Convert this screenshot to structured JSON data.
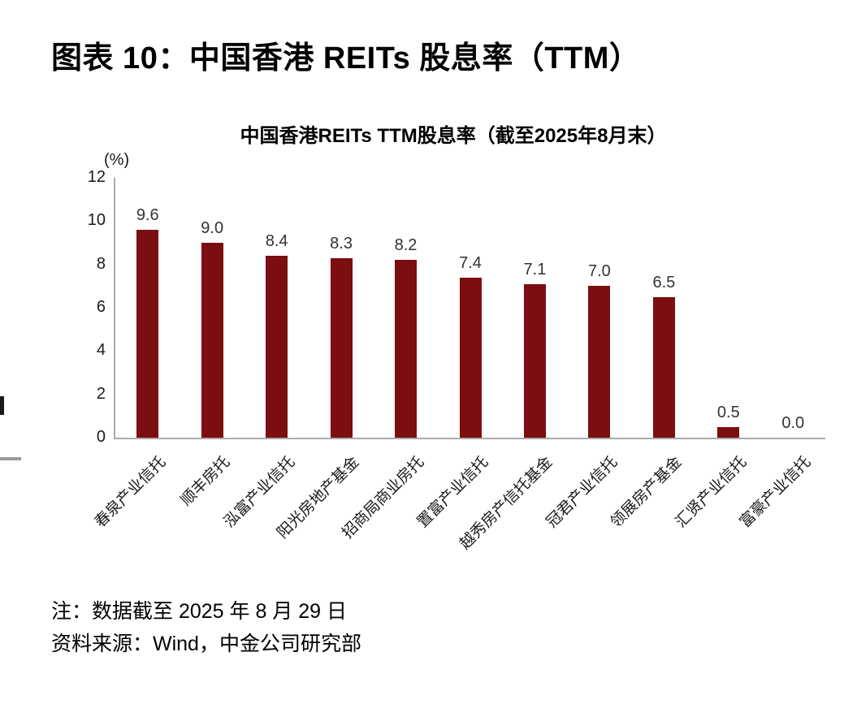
{
  "page": {
    "figure_title": "图表 10：中国香港 REITs 股息率（TTM）",
    "note_line1": "注：数据截至 2025 年 8 月 29 日",
    "note_line2": "资料来源：Wind，中金公司研究部"
  },
  "chart_data": {
    "type": "bar",
    "title": "中国香港REITs TTM股息率（截至2025年8月末）",
    "unit_label": "(%)",
    "categories": [
      "春泉产业信托",
      "顺丰房托",
      "泓富产业信托",
      "阳光房地产基金",
      "招商局商业房托",
      "置富产业信托",
      "越秀房产信托基金",
      "冠君产业信托",
      "领展房产基金",
      "汇贤产业信托",
      "富豪产业信托"
    ],
    "values": [
      9.6,
      9.0,
      8.4,
      8.3,
      8.2,
      7.4,
      7.1,
      7.0,
      6.5,
      0.5,
      0.0
    ],
    "value_labels": [
      "9.6",
      "9.0",
      "8.4",
      "8.3",
      "8.2",
      "7.4",
      "7.1",
      "7.0",
      "6.5",
      "0.5",
      "0.0"
    ],
    "xlabel": "",
    "ylabel": "(%)",
    "ylim": [
      0,
      12
    ],
    "yticks": [
      0,
      2,
      4,
      6,
      8,
      10,
      12
    ],
    "grid": false,
    "legend_position": "none",
    "bar_color": "#7c0d10",
    "axis_color": "#ababab",
    "value_label_color": "#333333"
  }
}
